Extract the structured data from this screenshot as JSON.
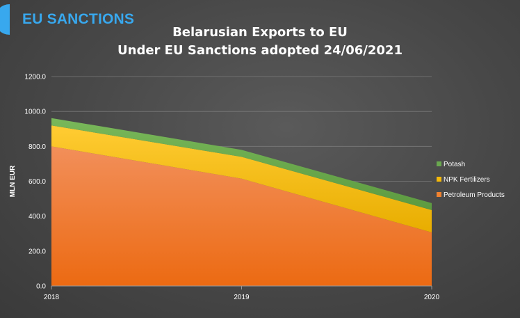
{
  "brand": {
    "name": "EU SANCTIONS",
    "color": "#38a8ee"
  },
  "title_line1": "Belarusian Exports to EU",
  "title_line2": "Under EU Sanctions adopted 24/06/2021",
  "chart_data": {
    "type": "area",
    "stacked": true,
    "title": "Belarusian Exports to EU Under EU Sanctions adopted 24/06/2021",
    "xlabel": "",
    "ylabel": "MLN EUR",
    "x": [
      "2018",
      "2019",
      "2020"
    ],
    "ylim": [
      0,
      1200
    ],
    "yticks": [
      0,
      200,
      400,
      600,
      800,
      1000,
      1200
    ],
    "ytick_labels": [
      "0.0",
      "200.0",
      "400.0",
      "600.0",
      "800.0",
      "1000.0",
      "1200.0"
    ],
    "grid": true,
    "legend_position": "right",
    "series": [
      {
        "name": "Petroleum Products",
        "values": [
          800,
          615,
          307
        ],
        "color": "#f0822f"
      },
      {
        "name": "NPK Fertilizers",
        "values": [
          120,
          125,
          128
        ],
        "color": "#f5b90a"
      },
      {
        "name": "Potash",
        "values": [
          42,
          40,
          40
        ],
        "color": "#6aa84f"
      }
    ]
  }
}
